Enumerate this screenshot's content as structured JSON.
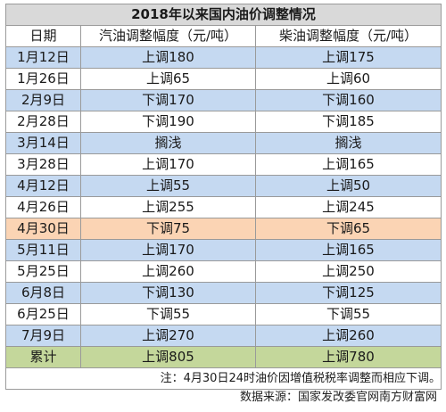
{
  "title": "2018年以来国内油价调整情况",
  "headers": [
    "日期",
    "汽油调整幅度（元/吨）",
    "柴油调整幅度（元/吨）"
  ],
  "colors": {
    "blue": "#c5d9f1",
    "white": "#ffffff",
    "orange": "#fbd4b4",
    "green": "#c4d79b",
    "title_bg": "#d9d9d9"
  },
  "rows": [
    {
      "date": "1月12日",
      "gasoline": "上调180",
      "diesel": "上调175",
      "bg": "blue"
    },
    {
      "date": "1月26日",
      "gasoline": "上调65",
      "diesel": "上调60",
      "bg": "white"
    },
    {
      "date": "2月9日",
      "gasoline": "下调170",
      "diesel": "下调160",
      "bg": "blue"
    },
    {
      "date": "2月28日",
      "gasoline": "下调190",
      "diesel": "下调185",
      "bg": "white"
    },
    {
      "date": "3月14日",
      "gasoline": "搁浅",
      "diesel": "搁浅",
      "bg": "blue"
    },
    {
      "date": "3月28日",
      "gasoline": "上调170",
      "diesel": "上调165",
      "bg": "white"
    },
    {
      "date": "4月12日",
      "gasoline": "上调55",
      "diesel": "上调50",
      "bg": "blue"
    },
    {
      "date": "4月26日",
      "gasoline": "上调255",
      "diesel": "上调245",
      "bg": "white"
    },
    {
      "date": "4月30日",
      "gasoline": "下调75",
      "diesel": "下调65",
      "bg": "orange"
    },
    {
      "date": "5月11日",
      "gasoline": "上调170",
      "diesel": "上调165",
      "bg": "blue"
    },
    {
      "date": "5月25日",
      "gasoline": "上调260",
      "diesel": "上调250",
      "bg": "white"
    },
    {
      "date": "6月8日",
      "gasoline": "下调130",
      "diesel": "下调125",
      "bg": "blue"
    },
    {
      "date": "6月25日",
      "gasoline": "下调55",
      "diesel": "下调55",
      "bg": "white"
    },
    {
      "date": "7月9日",
      "gasoline": "上调270",
      "diesel": "上调260",
      "bg": "blue"
    }
  ],
  "total": {
    "label": "累计",
    "gasoline": "上调805",
    "diesel": "上调780"
  },
  "note": "注：4月30日24时油价因增值税税率调整而相应下调。",
  "source": "数据来源：国家发改委官网南方财富网"
}
